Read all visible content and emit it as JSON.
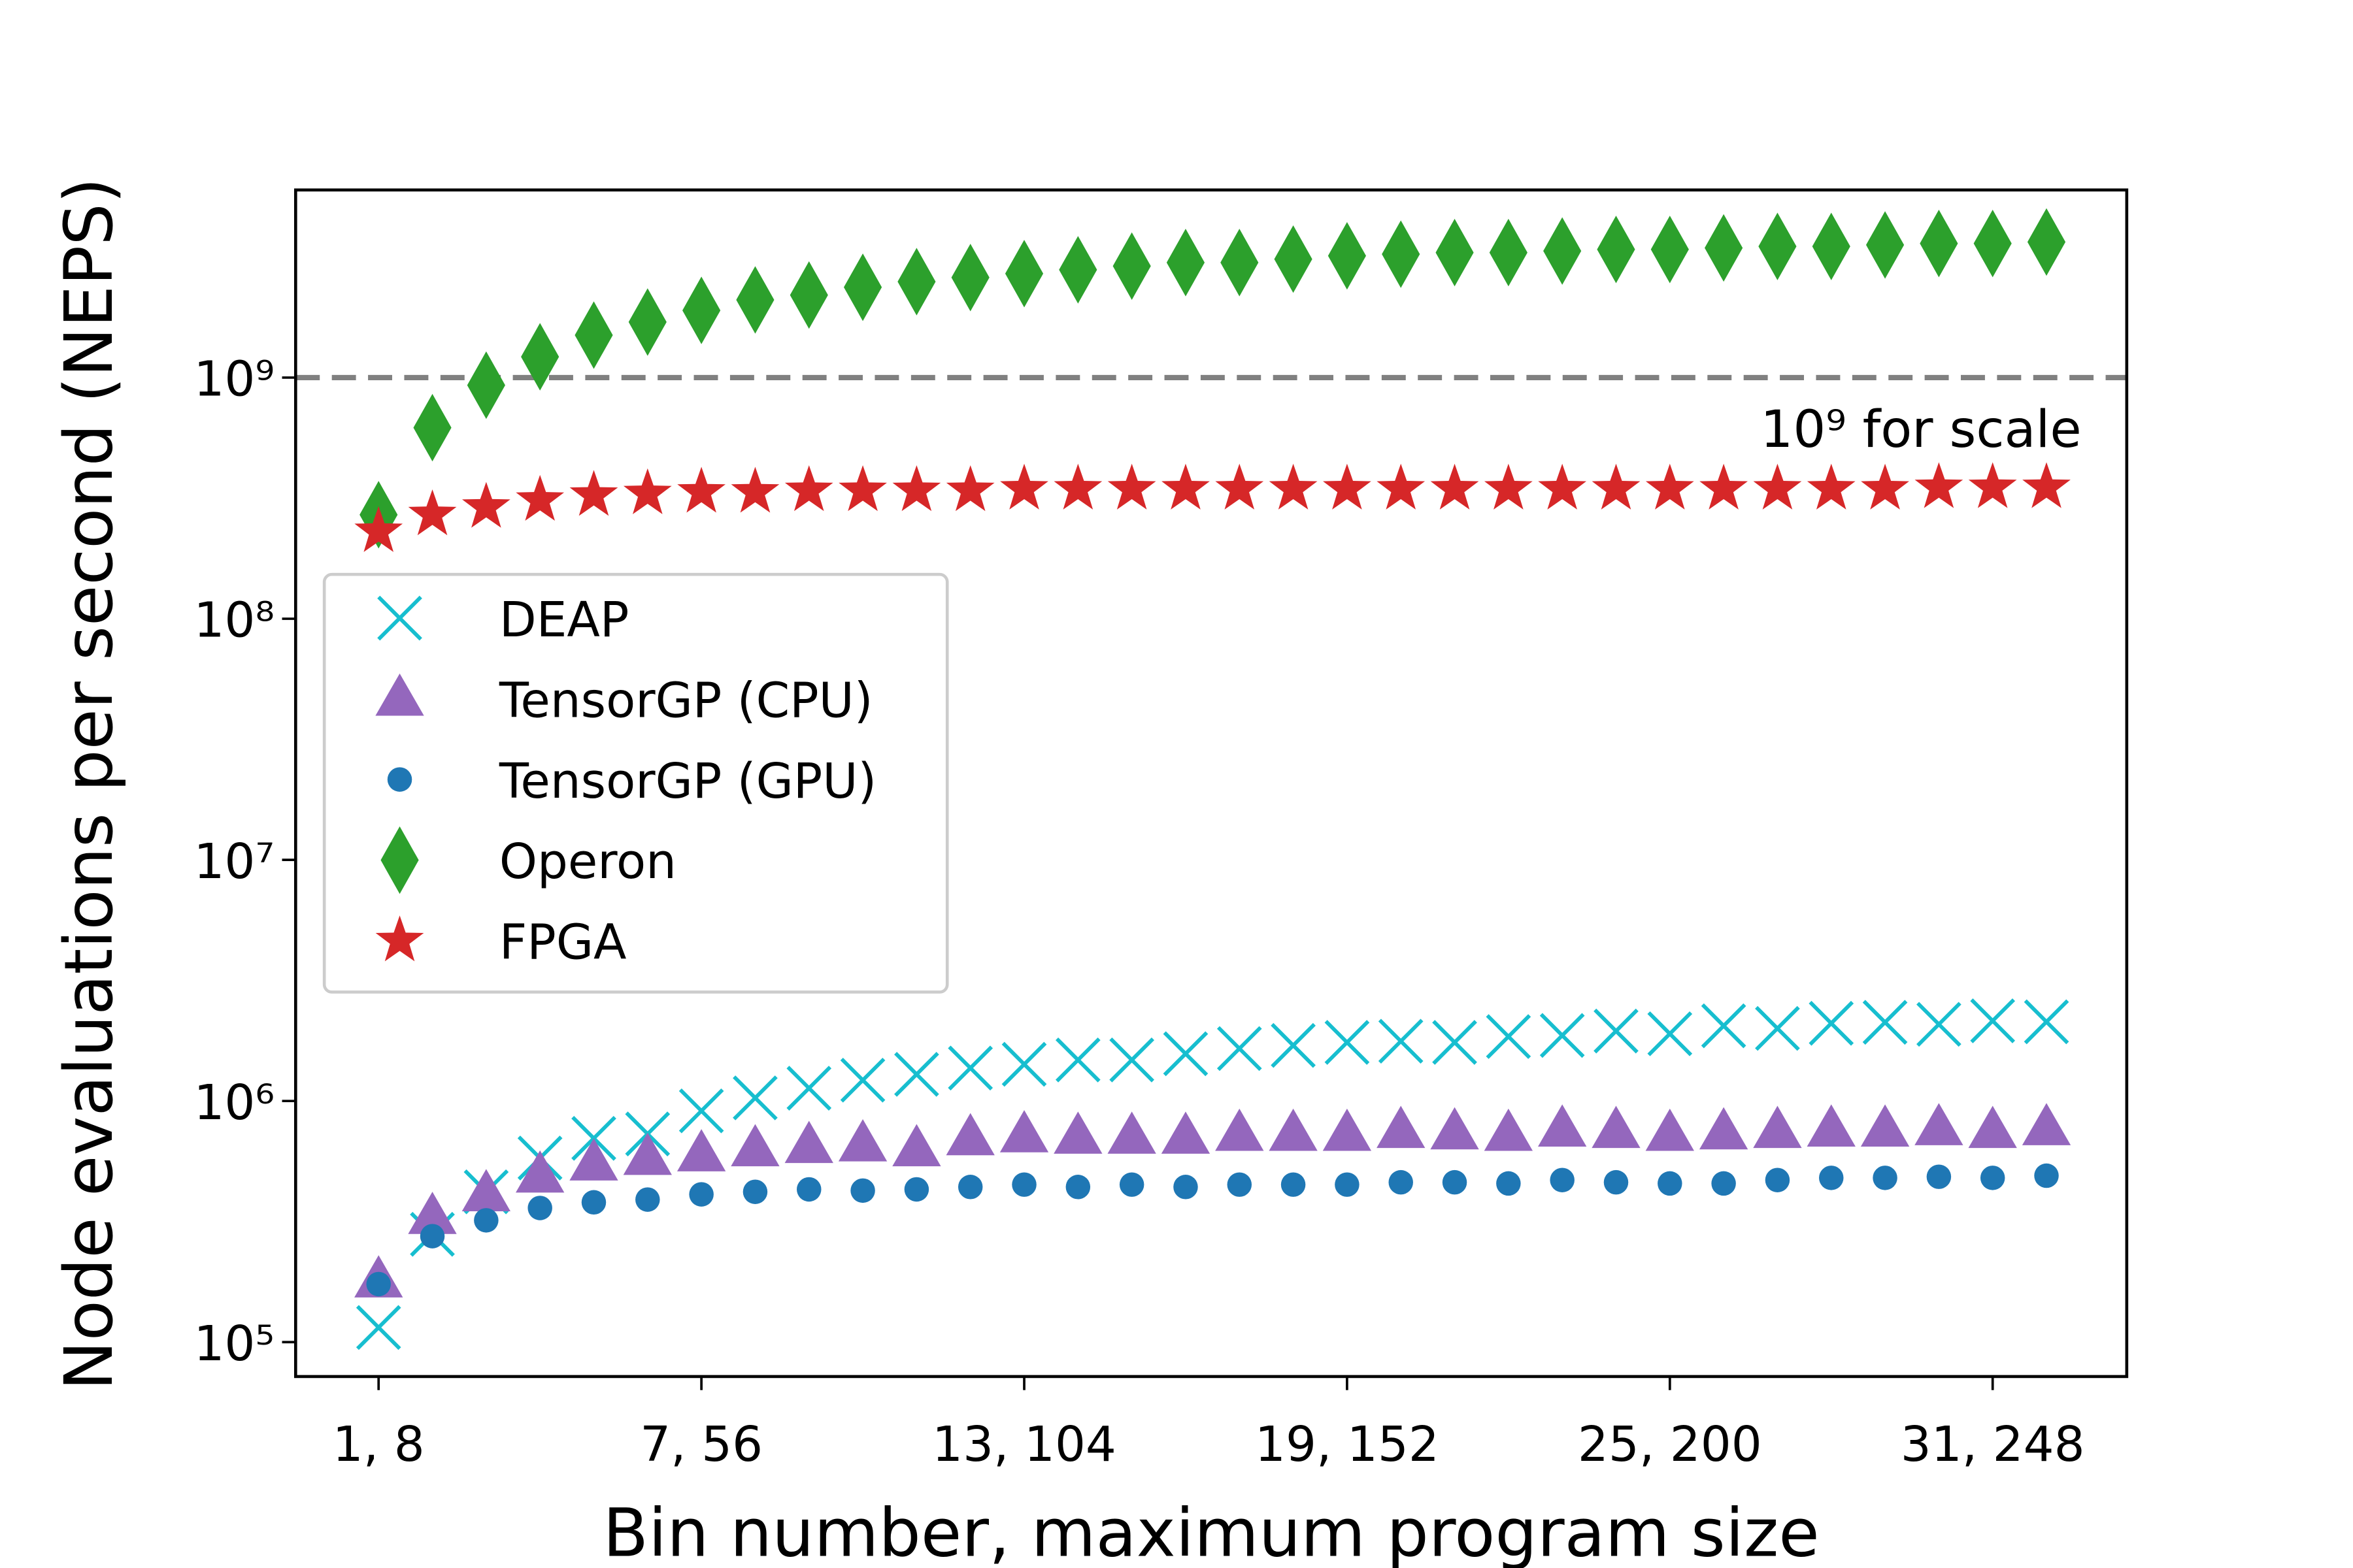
{
  "chart_data": {
    "type": "scatter",
    "xlabel": "Bin number, maximum program size",
    "ylabel": "Node evaluations per second (NEPS)",
    "categories": [
      "1, 8",
      null,
      null,
      null,
      null,
      null,
      "7, 56",
      null,
      null,
      null,
      null,
      null,
      "13, 104",
      null,
      null,
      null,
      null,
      null,
      "19, 152",
      null,
      null,
      null,
      null,
      null,
      "25, 200",
      null,
      null,
      null,
      null,
      null,
      "31, 248",
      null
    ],
    "log_y": true,
    "ylim": [
      72000,
      6000000000
    ],
    "yticks": [
      {
        "value": 100000,
        "label": "10⁵"
      },
      {
        "value": 1000000,
        "label": "10⁶"
      },
      {
        "value": 10000000,
        "label": "10⁷"
      },
      {
        "value": 100000000,
        "label": "10⁸"
      },
      {
        "value": 1000000000,
        "label": "10⁹"
      }
    ],
    "hline": {
      "value": 1000000000,
      "color": "#808080",
      "label": "10⁹ for scale"
    },
    "legend": "center left",
    "series": [
      {
        "name": "DEAP",
        "color": "#17becf",
        "marker": "x",
        "values": [
          115000,
          280000,
          420000,
          580000,
          700000,
          730000,
          910000,
          1030000,
          1130000,
          1220000,
          1290000,
          1370000,
          1420000,
          1480000,
          1480000,
          1570000,
          1650000,
          1700000,
          1750000,
          1770000,
          1750000,
          1850000,
          1870000,
          1950000,
          1900000,
          2050000,
          2000000,
          2100000,
          2120000,
          2080000,
          2150000,
          2130000
        ]
      },
      {
        "name": "TensorGP (CPU)",
        "color": "#9467bd",
        "marker": "triangle",
        "values": [
          180000,
          330000,
          410000,
          490000,
          550000,
          580000,
          600000,
          630000,
          650000,
          660000,
          630000,
          700000,
          720000,
          710000,
          710000,
          710000,
          730000,
          730000,
          730000,
          750000,
          740000,
          730000,
          760000,
          750000,
          730000,
          740000,
          750000,
          760000,
          760000,
          770000,
          750000,
          770000
        ]
      },
      {
        "name": "TensorGP (GPU)",
        "color": "#1f77b4",
        "marker": "circle",
        "values": [
          174000,
          275000,
          320000,
          360000,
          380000,
          390000,
          410000,
          420000,
          430000,
          425000,
          430000,
          440000,
          450000,
          440000,
          450000,
          440000,
          450000,
          450000,
          450000,
          460000,
          460000,
          455000,
          470000,
          460000,
          455000,
          455000,
          470000,
          480000,
          480000,
          485000,
          480000,
          490000
        ]
      },
      {
        "name": "Operon",
        "color": "#2ca02c",
        "marker": "thin-diamond",
        "values": [
          270000000,
          620000000,
          930000000,
          1220000000,
          1500000000,
          1700000000,
          1900000000,
          2100000000,
          2200000000,
          2370000000,
          2500000000,
          2600000000,
          2700000000,
          2800000000,
          2900000000,
          3000000000,
          3000000000,
          3100000000,
          3200000000,
          3250000000,
          3300000000,
          3300000000,
          3350000000,
          3400000000,
          3400000000,
          3450000000,
          3500000000,
          3500000000,
          3550000000,
          3600000000,
          3600000000,
          3650000000
        ]
      },
      {
        "name": "FPGA",
        "color": "#d62728",
        "marker": "star",
        "values": [
          230000000,
          270000000,
          290000000,
          310000000,
          325000000,
          330000000,
          335000000,
          335000000,
          340000000,
          340000000,
          340000000,
          340000000,
          345000000,
          345000000,
          345000000,
          345000000,
          345000000,
          345000000,
          345000000,
          345000000,
          345000000,
          345000000,
          345000000,
          345000000,
          345000000,
          345000000,
          345000000,
          345000000,
          345000000,
          350000000,
          350000000,
          350000000
        ]
      }
    ]
  }
}
